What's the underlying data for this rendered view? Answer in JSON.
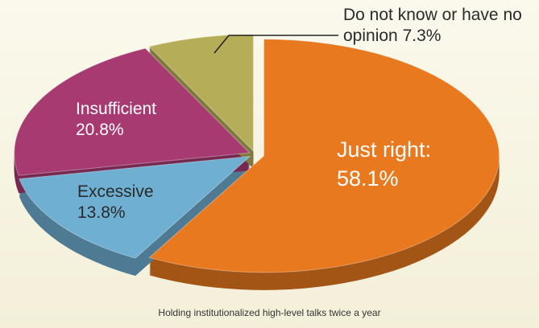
{
  "chart_data": {
    "type": "pie",
    "categories": [
      "Just right:",
      "Excessive",
      "Insufficient",
      "Do not know or have no opinion"
    ],
    "values": [
      58.1,
      13.8,
      20.8,
      7.3
    ],
    "value_labels": [
      "58.1%",
      "13.8%",
      "20.8%",
      "7.3%"
    ],
    "colors": [
      "#e9791f",
      "#6fb0d2",
      "#a83a72",
      "#b5ad57"
    ],
    "caption": "Holding institutionalized high-level talks twice a year"
  }
}
